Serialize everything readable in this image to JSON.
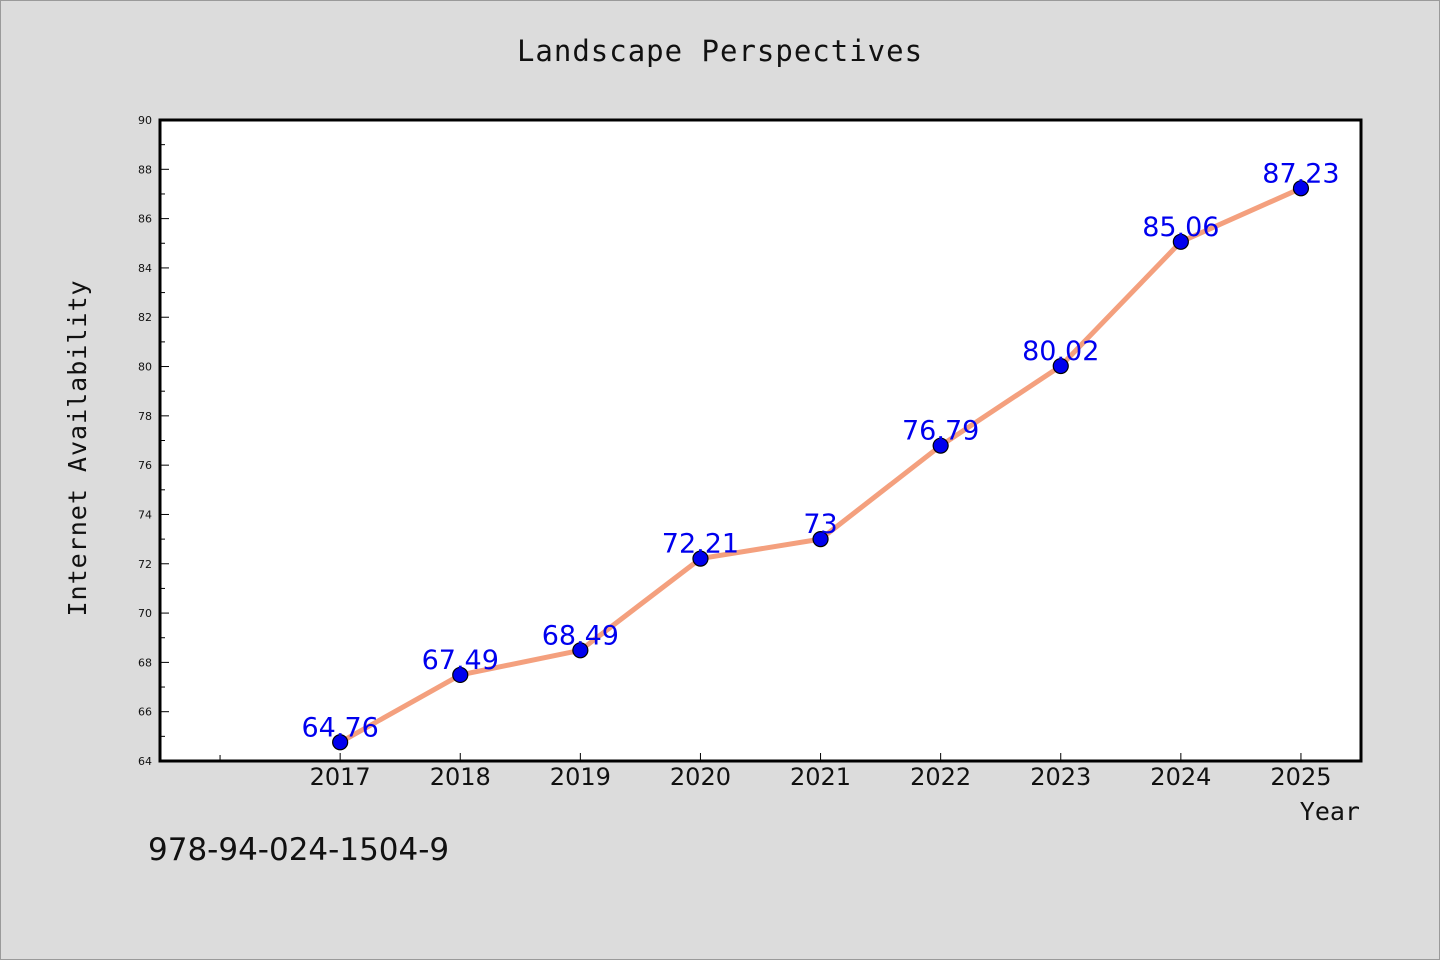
{
  "chart_data": {
    "type": "line",
    "title": "Landscape Perspectives",
    "xlabel": "Year",
    "ylabel": "Internet Availability",
    "ylim": [
      64,
      90
    ],
    "x": [
      "2017",
      "2018",
      "2019",
      "2020",
      "2021",
      "2022",
      "2023",
      "2024",
      "2025"
    ],
    "series": [
      {
        "values": [
          64.76,
          67.49,
          68.49,
          72.21,
          73,
          76.79,
          80.02,
          85.06,
          87.23
        ],
        "labels": [
          "64.76",
          "67.49",
          "68.49",
          "72.21",
          "73",
          "76.79",
          "80.02",
          "85.06",
          "87.23"
        ],
        "line_color": "#f4a07e",
        "marker_color": "#0000ee"
      }
    ],
    "y_ticks": [
      "64",
      "66",
      "68",
      "70",
      "72",
      "74",
      "76",
      "78",
      "80",
      "82",
      "84",
      "86",
      "88",
      "90"
    ],
    "grid": false,
    "legend": "none"
  },
  "footer_text": "978-94-024-1504-9"
}
